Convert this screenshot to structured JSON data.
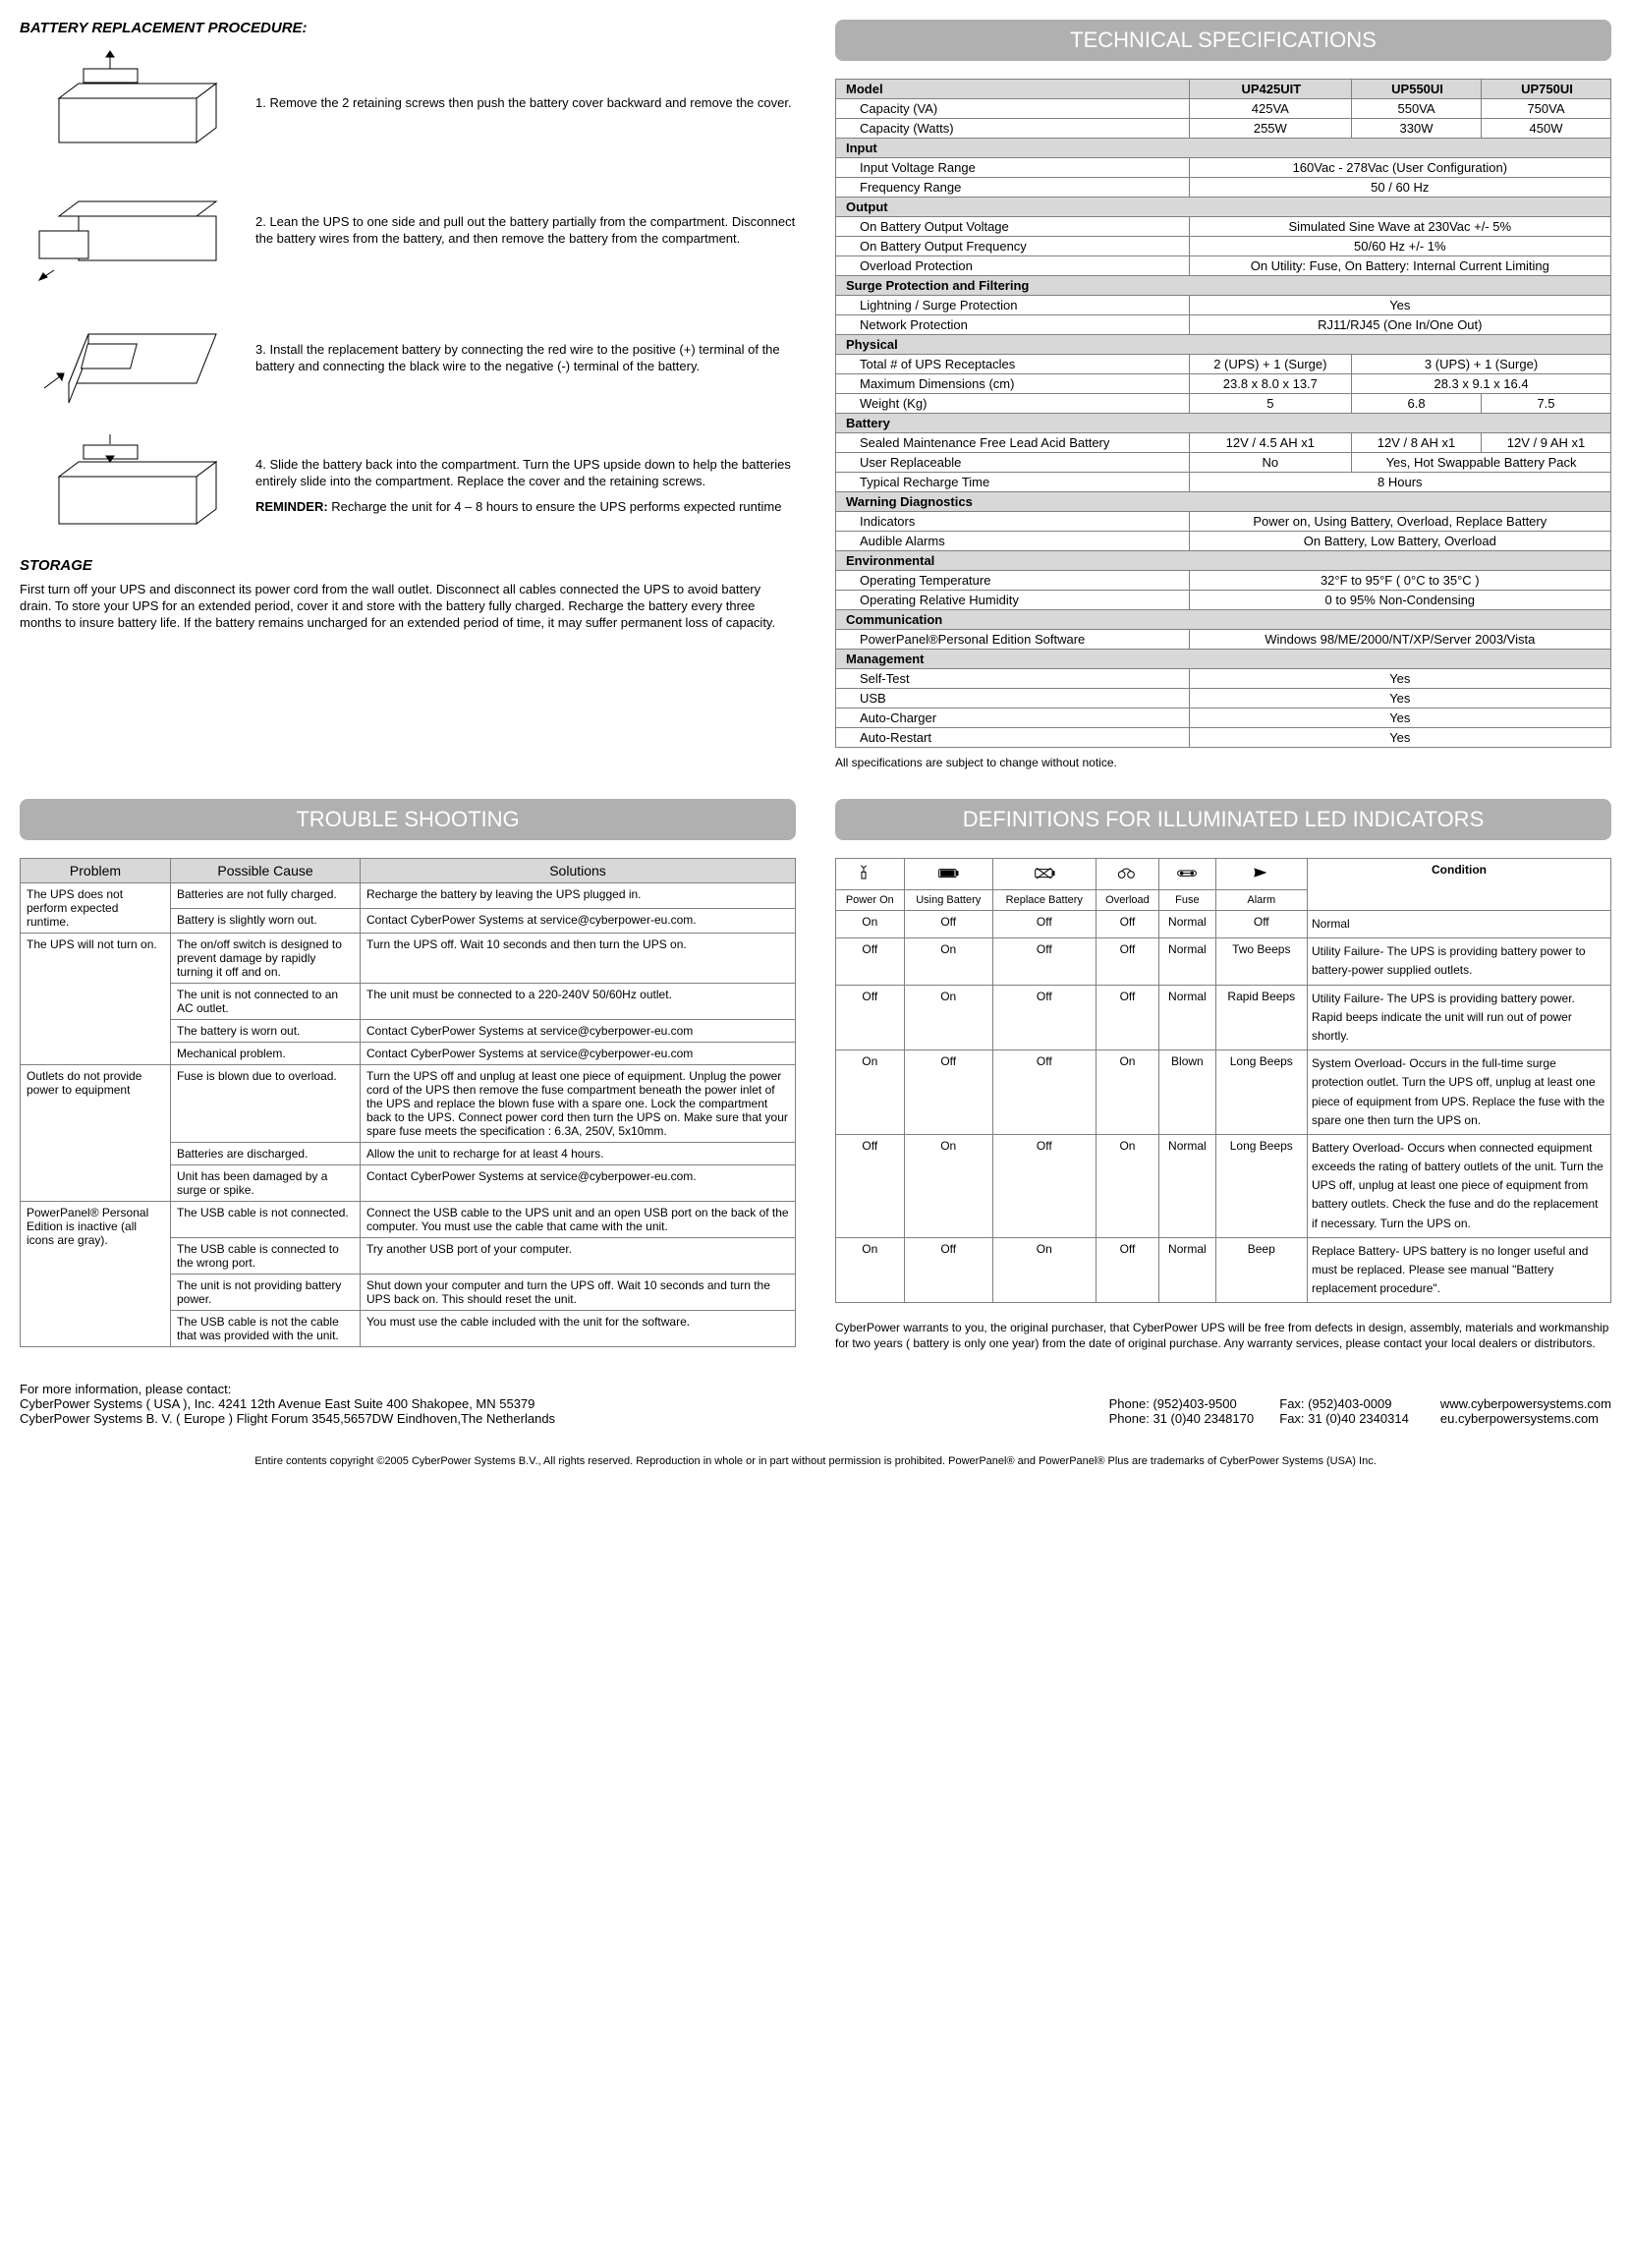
{
  "battery": {
    "title": "BATTERY REPLACEMENT PROCEDURE:",
    "steps": [
      "1. Remove the 2 retaining screws then push the battery cover backward and remove the cover.",
      "2. Lean the UPS to one side and pull out the battery partially from the compartment. Disconnect the battery wires from the battery, and then remove the battery from the compartment.",
      "3. Install the replacement battery by connecting the red wire to the positive (+) terminal of the battery and connecting the black wire to the negative (-) terminal of the battery.",
      "4. Slide the battery back into the compartment. Turn the UPS upside down to help the batteries entirely slide into the compartment. Replace the cover and the retaining screws."
    ],
    "reminder_label": "REMINDER:",
    "reminder_text": " Recharge the unit for 4 – 8 hours to ensure the UPS performs expected runtime"
  },
  "storage": {
    "title": "STORAGE",
    "text": "First turn off your UPS and disconnect its power cord from the wall outlet. Disconnect all cables connected the UPS to avoid battery drain. To store your UPS for an extended period, cover it and store with the battery fully charged. Recharge the battery every three months to insure battery life. If the battery remains uncharged for an extended period of time, it may suffer permanent loss of capacity."
  },
  "tech": {
    "banner": "TECHNICAL SPECIFICATIONS",
    "note": "All specifications are subject to change without notice.",
    "rows": [
      {
        "type": "h",
        "label": "Model",
        "cells": [
          "UP425UIT",
          "UP550UI",
          "UP750UI"
        ]
      },
      {
        "type": "d",
        "label": "Capacity  (VA)",
        "cells": [
          "425VA",
          "550VA",
          "750VA"
        ]
      },
      {
        "type": "d",
        "label": "Capacity  (Watts)",
        "cells": [
          "255W",
          "330W",
          "450W"
        ]
      },
      {
        "type": "h",
        "label": "Input"
      },
      {
        "type": "d",
        "label": "Input Voltage Range",
        "span": "160Vac - 278Vac (User Configuration)"
      },
      {
        "type": "d",
        "label": "Frequency Range",
        "span": "50 / 60 Hz"
      },
      {
        "type": "h",
        "label": "Output"
      },
      {
        "type": "d",
        "label": "On Battery Output Voltage",
        "span": "Simulated Sine Wave at 230Vac +/- 5%"
      },
      {
        "type": "d",
        "label": "On Battery Output Frequency",
        "span": "50/60 Hz +/- 1%"
      },
      {
        "type": "d",
        "label": "Overload Protection",
        "span": "On Utility: Fuse, On Battery: Internal Current Limiting"
      },
      {
        "type": "h",
        "label": "Surge Protection and Filtering"
      },
      {
        "type": "d",
        "label": "Lightning / Surge Protection",
        "span": "Yes"
      },
      {
        "type": "d",
        "label": "Network Protection",
        "span": "RJ11/RJ45 (One In/One Out)"
      },
      {
        "type": "h",
        "label": "Physical"
      },
      {
        "type": "d",
        "label": "Total # of UPS Receptacles",
        "cells2": [
          "2 (UPS) + 1 (Surge)",
          "3 (UPS) + 1 (Surge)"
        ]
      },
      {
        "type": "d",
        "label": "Maximum Dimensions (cm)",
        "cells2": [
          "23.8 x 8.0 x 13.7",
          "28.3 x 9.1 x 16.4"
        ]
      },
      {
        "type": "d",
        "label": "Weight (Kg)",
        "cells": [
          "5",
          "6.8",
          "7.5"
        ]
      },
      {
        "type": "h",
        "label": "Battery"
      },
      {
        "type": "d",
        "label": "Sealed Maintenance Free Lead Acid Battery",
        "cells": [
          "12V / 4.5 AH x1",
          "12V / 8 AH x1",
          "12V / 9 AH x1"
        ]
      },
      {
        "type": "d",
        "label": "User Replaceable",
        "cells2": [
          "No",
          "Yes, Hot Swappable Battery Pack"
        ]
      },
      {
        "type": "d",
        "label": "Typical Recharge Time",
        "span": "8 Hours"
      },
      {
        "type": "h",
        "label": "Warning Diagnostics"
      },
      {
        "type": "d",
        "label": "Indicators",
        "span": "Power on, Using Battery, Overload, Replace Battery"
      },
      {
        "type": "d",
        "label": "Audible Alarms",
        "span": "On Battery, Low Battery, Overload"
      },
      {
        "type": "h",
        "label": "Environmental"
      },
      {
        "type": "d",
        "label": "Operating Temperature",
        "span": "32°F to 95°F ( 0°C to 35°C )"
      },
      {
        "type": "d",
        "label": "Operating Relative Humidity",
        "span": "0 to 95% Non-Condensing"
      },
      {
        "type": "h",
        "label": "Communication"
      },
      {
        "type": "d",
        "label": "PowerPanel®Personal Edition Software",
        "span": "Windows 98/ME/2000/NT/XP/Server 2003/Vista"
      },
      {
        "type": "h",
        "label": "Management"
      },
      {
        "type": "d",
        "label": "Self-Test",
        "span": "Yes"
      },
      {
        "type": "d",
        "label": "USB",
        "span": "Yes"
      },
      {
        "type": "d",
        "label": "Auto-Charger",
        "span": "Yes"
      },
      {
        "type": "d",
        "label": "Auto-Restart",
        "span": "Yes"
      }
    ]
  },
  "trouble": {
    "banner": "TROUBLE SHOOTING",
    "headers": [
      "Problem",
      "Possible Cause",
      "Solutions"
    ],
    "groups": [
      {
        "problem": "The UPS does not perform expected runtime.",
        "rows": [
          {
            "cause": "Batteries are not fully charged.",
            "solution": "Recharge the battery by leaving the UPS plugged in."
          },
          {
            "cause": "Battery is slightly worn out.",
            "solution": "Contact CyberPower Systems at service@cyberpower-eu.com."
          }
        ]
      },
      {
        "problem": "The UPS will not turn on.",
        "rows": [
          {
            "cause": "The on/off switch is designed to prevent damage by rapidly turning it off and on.",
            "solution": "Turn the UPS off. Wait 10 seconds and then turn the UPS on."
          },
          {
            "cause": "The unit is not connected to an AC outlet.",
            "solution": "The unit must be connected to a 220-240V 50/60Hz outlet."
          },
          {
            "cause": "The battery is worn out.",
            "solution": "Contact CyberPower Systems at service@cyberpower-eu.com"
          },
          {
            "cause": "Mechanical problem.",
            "solution": "Contact CyberPower Systems at service@cyberpower-eu.com"
          }
        ]
      },
      {
        "problem": "Outlets do not provide power to equipment",
        "rows": [
          {
            "cause": "Fuse is blown due to overload.",
            "solution": "Turn the UPS off and unplug at least one piece of equipment. Unplug the power cord of the UPS then remove the fuse compartment beneath the power inlet of the UPS and replace the blown fuse with a spare one. Lock the compartment back to the UPS. Connect power cord then turn the UPS on. Make sure that your spare fuse meets the specification : 6.3A, 250V, 5x10mm."
          },
          {
            "cause": "Batteries are discharged.",
            "solution": "Allow the unit to recharge for at least 4 hours."
          },
          {
            "cause": "Unit has been damaged by a surge or spike.",
            "solution": "Contact CyberPower Systems at service@cyberpower-eu.com."
          }
        ]
      },
      {
        "problem": "PowerPanel® Personal Edition is inactive (all icons are gray).",
        "rows": [
          {
            "cause": "The USB cable is not connected.",
            "solution": "Connect the USB cable to the UPS unit and an open USB port on the back of the computer. You must use the cable that came with the unit."
          },
          {
            "cause": "The USB cable is connected to the wrong port.",
            "solution": "Try another USB port of your computer."
          },
          {
            "cause": "The unit is not providing battery power.",
            "solution": "Shut down your computer and turn the UPS off. Wait 10 seconds and turn the UPS back on. This should reset the unit."
          },
          {
            "cause": "The USB cable is not the cable that was provided with the unit.",
            "solution": "You must use the cable included with the unit for the software."
          }
        ]
      }
    ]
  },
  "led": {
    "banner": "DEFINITIONS FOR ILLUMINATED LED INDICATORS",
    "col_labels": [
      "Power On",
      "Using Battery",
      "Replace Battery",
      "Overload",
      "Fuse",
      "Alarm"
    ],
    "condition_label": "Condition",
    "rows": [
      {
        "c": [
          "On",
          "Off",
          "Off",
          "Off",
          "Normal",
          "Off"
        ],
        "cond": "Normal"
      },
      {
        "c": [
          "Off",
          "On",
          "Off",
          "Off",
          "Normal",
          "Two Beeps"
        ],
        "cond": "Utility Failure- The UPS is providing battery power to battery-power supplied outlets."
      },
      {
        "c": [
          "Off",
          "On",
          "Off",
          "Off",
          "Normal",
          "Rapid Beeps"
        ],
        "cond": "Utility Failure- The UPS is providing battery power.  Rapid beeps indicate the unit will run out of power shortly."
      },
      {
        "c": [
          "On",
          "Off",
          "Off",
          "On",
          "Blown",
          "Long Beeps"
        ],
        "cond": "System Overload- Occurs in the full-time surge protection outlet.  Turn the UPS off, unplug at least one piece of equipment from UPS. Replace the fuse with the spare one then turn the UPS on."
      },
      {
        "c": [
          "Off",
          "On",
          "Off",
          "On",
          "Normal",
          "Long Beeps"
        ],
        "cond": "Battery Overload- Occurs when connected equipment exceeds the rating of battery outlets of the unit. Turn the UPS off, unplug at least one piece of equipment from battery outlets.  Check the fuse and do the replacement if necessary. Turn the UPS on."
      },
      {
        "c": [
          "On",
          "Off",
          "On",
          "Off",
          "Normal",
          "Beep"
        ],
        "cond": "Replace Battery-  UPS battery is no longer useful and must be replaced. Please see manual \"Battery replacement procedure\"."
      }
    ],
    "warranty": "CyberPower warrants to you, the original purchaser, that CyberPower UPS will be free from defects in design, assembly, materials and workmanship for two years ( battery is only one year) from the date of original purchase.  Any warranty services, please contact your local dealers or distributors."
  },
  "footer": {
    "info_label": "For more information, please contact:",
    "usa": "CyberPower Systems ( USA ), Inc.  4241 12th Avenue East Suite 400 Shakopee, MN 55379",
    "eu": "CyberPower Systems B. V. ( Europe ) Flight Forum 3545,5657DW Eindhoven,The Netherlands",
    "phone1": "Phone: (952)403-9500",
    "fax1": "Fax: (952)403-0009",
    "web1": "www.cyberpowersystems.com",
    "phone2": "Phone: 31 (0)40 2348170",
    "fax2": "Fax: 31 (0)40 2340314",
    "web2": "eu.cyberpowersystems.com",
    "copyright": "Entire contents copyright ©2005 CyberPower Systems B.V., All rights reserved. Reproduction in whole or in part without permission is prohibited. PowerPanel® and PowerPanel® Plus are trademarks of CyberPower Systems (USA) Inc."
  }
}
